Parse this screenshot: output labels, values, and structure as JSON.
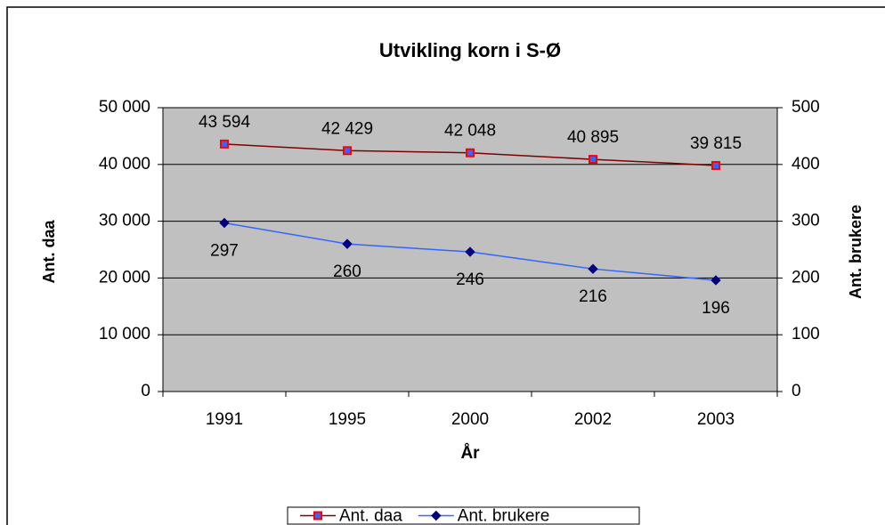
{
  "chart_data": {
    "type": "line",
    "title": "Utvikling korn i S-Ø",
    "x_label": "År",
    "y_label": "Ant. daa",
    "y2_label": "Ant. brukere",
    "categories": [
      "1991",
      "1995",
      "2000",
      "2002",
      "2003"
    ],
    "series": [
      {
        "name": "Ant. daa",
        "color": "#800000",
        "marker": "square",
        "marker_color": "#ff0000",
        "marker_fill": "#3366ff",
        "values": [
          43594,
          42429,
          42048,
          40895,
          39815
        ],
        "value_labels": [
          "43 594",
          "42 429",
          "42 048",
          "40 895",
          "39 815"
        ]
      },
      {
        "name": "Ant. brukere",
        "color": "#3366ff",
        "marker": "diamond",
        "marker_color": "#000080",
        "marker_fill": "#000080",
        "axis": "y2",
        "values": [
          297,
          260,
          246,
          216,
          196
        ]
      }
    ],
    "ylim": [
      0,
      50000
    ],
    "yticks": [
      0,
      {
        "value": 10000,
        "label": "10 000"
      },
      {
        "value": 20000,
        "label": "20 000"
      },
      {
        "value": 30000,
        "label": "30 000"
      },
      {
        "value": 40000,
        "label": "40 000"
      },
      {
        "value": 50000,
        "label": "50 000"
      }
    ],
    "y2lim": [
      0,
      500
    ],
    "y2ticks": [
      0,
      100,
      200,
      300,
      400,
      500
    ],
    "grid": true,
    "plot_background": "#c0c0c0",
    "legend": "bottom"
  }
}
